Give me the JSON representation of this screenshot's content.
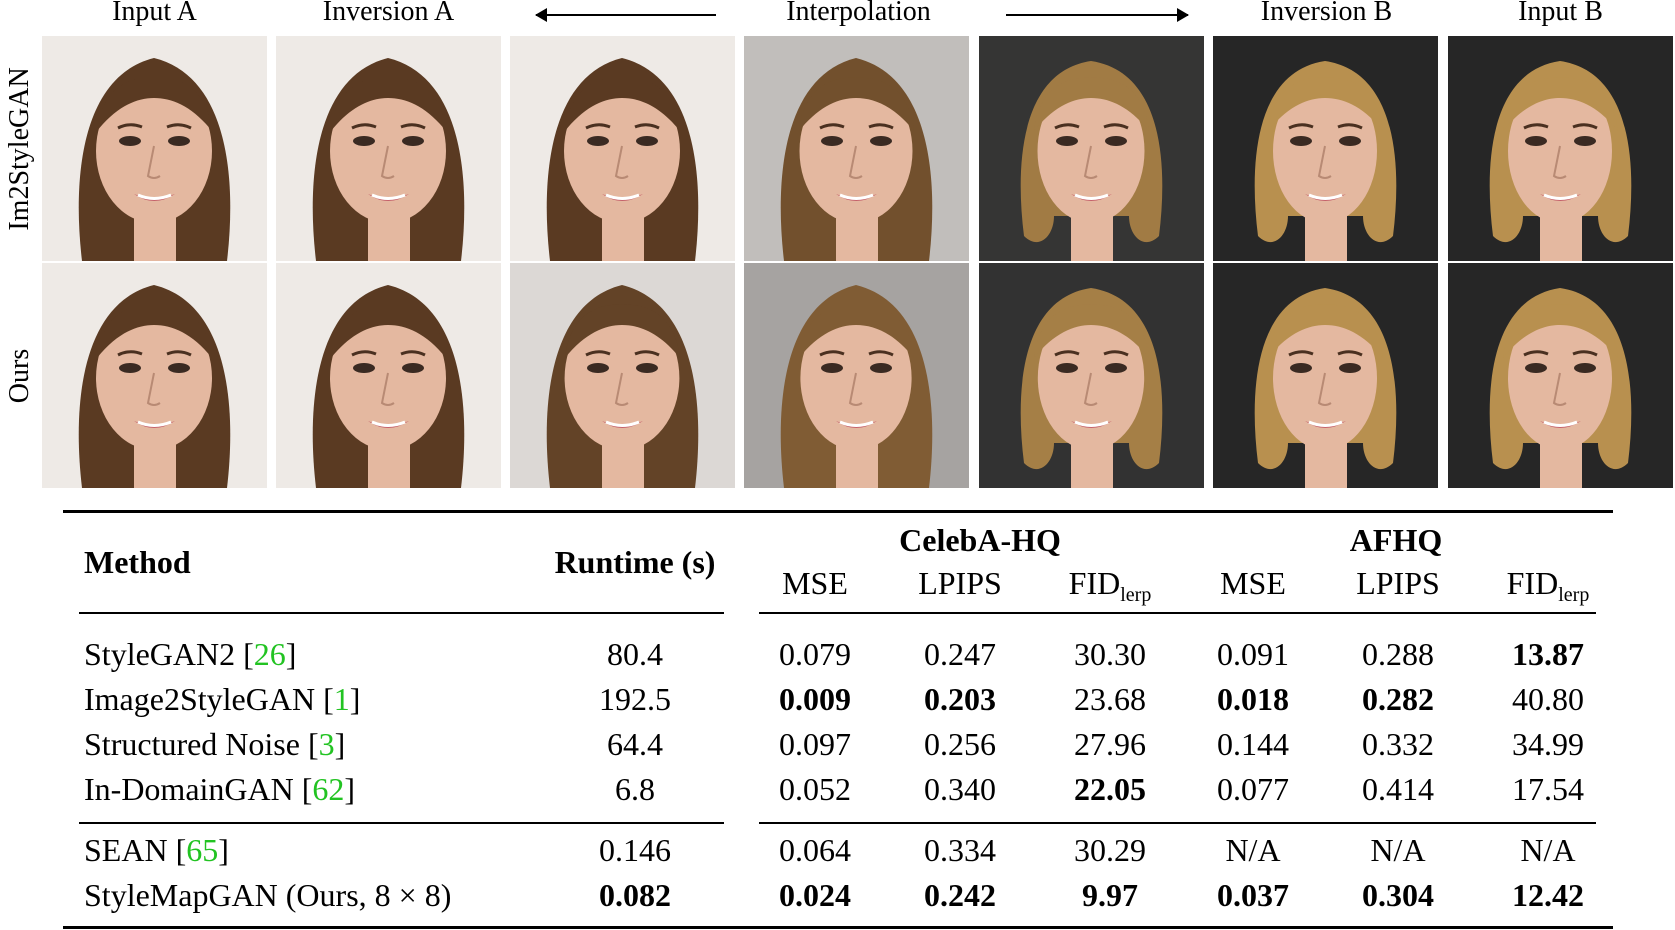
{
  "figure": {
    "column_headers": {
      "input_a": "Input A",
      "inversion_a": "Inversion A",
      "interpolation": "Interpolation",
      "inversion_b": "Inversion B",
      "input_b": "Input B"
    },
    "row_labels": {
      "top": "Im2StyleGAN",
      "bottom": "Ours"
    },
    "palette": {
      "bg_light": "#eeeae6",
      "bg_dark": "#262626",
      "hair_brunette": "#5a3a22",
      "hair_blonde": "#b8904f",
      "skin": "#e4b8a0"
    }
  },
  "table": {
    "headers": {
      "method": "Method",
      "runtime": "Runtime (s)",
      "celeba": "CelebA-HQ",
      "afhq": "AFHQ",
      "mse": "MSE",
      "lpips": "LPIPS",
      "fid": "FID",
      "fid_sub": "lerp"
    },
    "rows": [
      {
        "name": "StyleGAN2 [",
        "ref": "26",
        "close": "]",
        "runtime": "80.4",
        "c_mse": "0.079",
        "c_lpips": "0.247",
        "c_fid": "30.30",
        "a_mse": "0.091",
        "a_lpips": "0.288",
        "a_fid": "13.87"
      },
      {
        "name": "Image2StyleGAN [",
        "ref": "1",
        "close": "]",
        "runtime": "192.5",
        "c_mse": "0.009",
        "c_lpips": "0.203",
        "c_fid": "23.68",
        "a_mse": "0.018",
        "a_lpips": "0.282",
        "a_fid": "40.80"
      },
      {
        "name": "Structured Noise [",
        "ref": "3",
        "close": "]",
        "runtime": "64.4",
        "c_mse": "0.097",
        "c_lpips": "0.256",
        "c_fid": "27.96",
        "a_mse": "0.144",
        "a_lpips": "0.332",
        "a_fid": "34.99"
      },
      {
        "name": "In-DomainGAN [",
        "ref": "62",
        "close": "]",
        "runtime": "6.8",
        "c_mse": "0.052",
        "c_lpips": "0.340",
        "c_fid": "22.05",
        "a_mse": "0.077",
        "a_lpips": "0.414",
        "a_fid": "17.54"
      },
      {
        "name": "SEAN [",
        "ref": "65",
        "close": "]",
        "runtime": "0.146",
        "c_mse": "0.064",
        "c_lpips": "0.334",
        "c_fid": "30.29",
        "a_mse": "N/A",
        "a_lpips": "N/A",
        "a_fid": "N/A"
      },
      {
        "name": "StyleMapGAN (Ours, 8 × 8)",
        "ref": "",
        "close": "",
        "runtime": "0.082",
        "c_mse": "0.024",
        "c_lpips": "0.242",
        "c_fid": "9.97",
        "a_mse": "0.037",
        "a_lpips": "0.304",
        "a_fid": "12.42"
      }
    ],
    "ref_color": "#22c322"
  }
}
